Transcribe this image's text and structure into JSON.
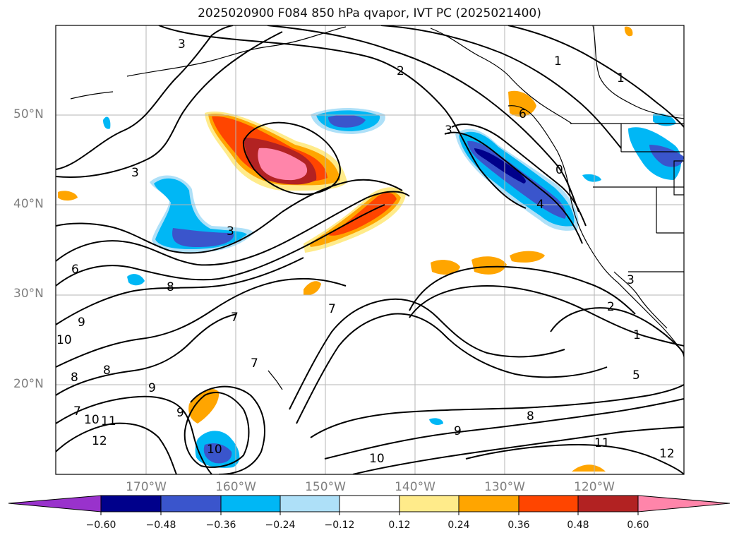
{
  "title": "2025020900 F084 850 hPa qvapor, IVT PC (2025021400)",
  "map": {
    "lat_labels": [
      "50°N",
      "40°N",
      "30°N",
      "20°N"
    ],
    "lon_labels": [
      "170°W",
      "160°W",
      "150°W",
      "140°W",
      "130°W",
      "120°W"
    ],
    "extent": {
      "lon_min": -180,
      "lon_max": -110,
      "lat_min": 10,
      "lat_max": 60
    },
    "grid": true
  },
  "contour_labels": [
    "3",
    "2",
    "1",
    "1",
    "3",
    "3",
    "6",
    "0",
    "4",
    "3",
    "6",
    "8",
    "7",
    "9",
    "10",
    "8",
    "8",
    "9",
    "7",
    "7",
    "2",
    "3",
    "1",
    "5",
    "8",
    "9",
    "9",
    "11",
    "12",
    "10",
    "10",
    "11",
    "12",
    "10",
    "7"
  ],
  "colorbar": {
    "ticks": [
      "−0.60",
      "−0.48",
      "−0.36",
      "−0.24",
      "−0.12",
      "0.12",
      "0.24",
      "0.36",
      "0.48",
      "0.60"
    ],
    "colors": [
      "#9932cc",
      "#00008b",
      "#3a55cc",
      "#00b7f5",
      "#aee0f8",
      "#ffffff",
      "#ffeb8a",
      "#ffa500",
      "#ff4500",
      "#b22222",
      "#ff85aa"
    ]
  }
}
